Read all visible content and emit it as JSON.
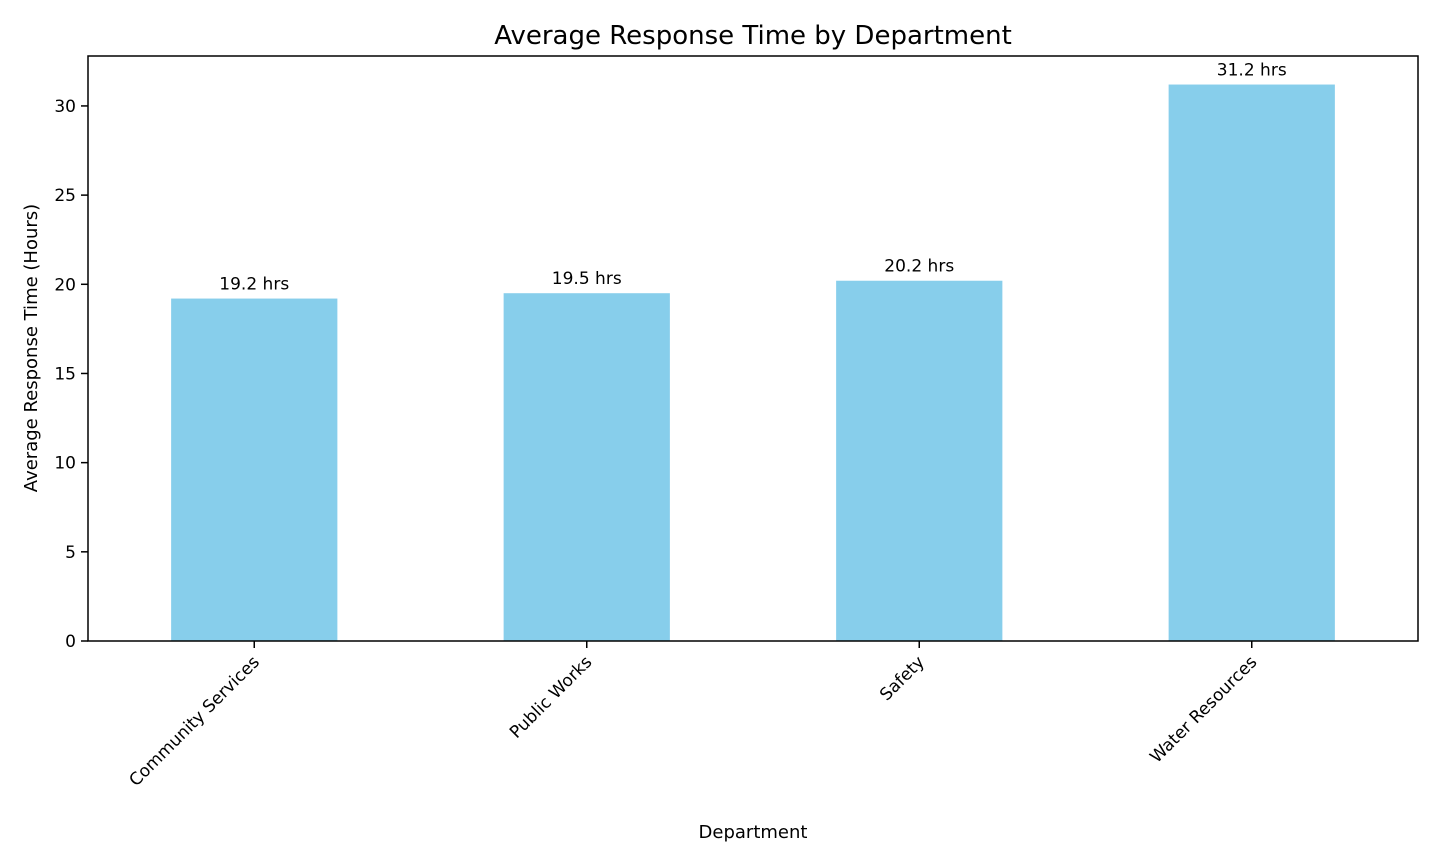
{
  "chart_data": {
    "type": "bar",
    "title": "Average Response Time by Department",
    "xlabel": "Department",
    "ylabel": "Average Response Time (Hours)",
    "categories": [
      "Community Services",
      "Public Works",
      "Safety",
      "Water Resources"
    ],
    "values": [
      19.2,
      19.5,
      20.2,
      31.2
    ],
    "data_labels": [
      "19.2 hrs",
      "19.5 hrs",
      "20.2 hrs",
      "31.2 hrs"
    ],
    "ylim": [
      0,
      32.8
    ],
    "yticks": [
      0,
      5,
      10,
      15,
      20,
      25,
      30
    ],
    "ytick_labels": [
      "0",
      "5",
      "10",
      "15",
      "20",
      "25",
      "30"
    ],
    "x_tick_rotation_deg": 45,
    "grid": false,
    "legend": "none",
    "colors": {
      "bar": "#87CEEB",
      "axis": "#000000",
      "background": "#ffffff"
    }
  }
}
